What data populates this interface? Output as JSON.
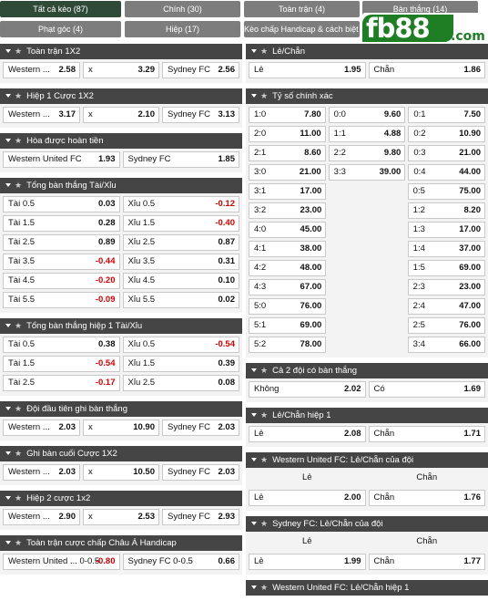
{
  "tabs": [
    {
      "label": "Tất cả kèo (87)",
      "active": true
    },
    {
      "label": "Chính (30)"
    },
    {
      "label": "Toàn trận (4)"
    },
    {
      "label": "Bàn thắng (14)"
    },
    {
      "label": "Phạt góc (4)"
    },
    {
      "label": "Hiệp (17)"
    },
    {
      "label": "Kèo chấp Handicap & cách biệt (3)"
    }
  ],
  "logo": {
    "main": "fb88",
    "suffix": ".com",
    "color": "#1e7e24"
  },
  "left": [
    {
      "title": "Toàn trận 1X2",
      "rows": [
        [
          [
            "Western ...",
            "2.58"
          ],
          [
            "x",
            "3.29"
          ],
          [
            "Sydney FC",
            "2.56"
          ]
        ]
      ]
    },
    {
      "title": "Hiệp 1 Cược 1X2",
      "rows": [
        [
          [
            "Western ...",
            "3.17"
          ],
          [
            "x",
            "2.10"
          ],
          [
            "Sydney FC",
            "3.13"
          ]
        ]
      ]
    },
    {
      "title": "Hòa được hoàn tiền",
      "rows": [
        [
          [
            "Western United FC",
            "1.93"
          ],
          [
            "Sydney FC",
            "1.85"
          ]
        ]
      ]
    },
    {
      "title": "Tổng bàn thắng Tài/Xỉu",
      "rows": [
        [
          [
            "Tài 0.5",
            "0.03"
          ],
          [
            "Xỉu 0.5",
            "-0.12"
          ]
        ],
        [
          [
            "Tài 1.5",
            "0.28"
          ],
          [
            "Xỉu 1.5",
            "-0.40"
          ]
        ],
        [
          [
            "Tài 2.5",
            "0.89"
          ],
          [
            "Xỉu 2.5",
            "0.87"
          ]
        ],
        [
          [
            "Tài 3.5",
            "-0.44"
          ],
          [
            "Xỉu 3.5",
            "0.31"
          ]
        ],
        [
          [
            "Tài 4.5",
            "-0.20"
          ],
          [
            "Xỉu 4.5",
            "0.10"
          ]
        ],
        [
          [
            "Tài 5.5",
            "-0.09"
          ],
          [
            "Xỉu 5.5",
            "0.02"
          ]
        ]
      ]
    },
    {
      "title": "Tổng bàn thắng hiệp 1 Tài/Xỉu",
      "rows": [
        [
          [
            "Tài 0.5",
            "0.38"
          ],
          [
            "Xỉu 0.5",
            "-0.54"
          ]
        ],
        [
          [
            "Tài 1.5",
            "-0.54"
          ],
          [
            "Xỉu 1.5",
            "0.39"
          ]
        ],
        [
          [
            "Tài 2.5",
            "-0.17"
          ],
          [
            "Xỉu 2.5",
            "0.08"
          ]
        ]
      ]
    },
    {
      "title": "Đội đầu tiên ghi bàn thắng",
      "rows": [
        [
          [
            "Western ...",
            "2.03"
          ],
          [
            "x",
            "10.90"
          ],
          [
            "Sydney FC",
            "2.03"
          ]
        ]
      ]
    },
    {
      "title": "Ghi bàn cuối Cược 1X2",
      "rows": [
        [
          [
            "Western ...",
            "2.03"
          ],
          [
            "x",
            "10.50"
          ],
          [
            "Sydney FC",
            "2.03"
          ]
        ]
      ]
    },
    {
      "title": "Hiệp 2 cược 1x2",
      "rows": [
        [
          [
            "Western ...",
            "2.90"
          ],
          [
            "x",
            "2.53"
          ],
          [
            "Sydney FC",
            "2.93"
          ]
        ]
      ]
    },
    {
      "title": "Toàn trận cược chấp Châu Á Handicap",
      "rows": [
        [
          [
            "Western United ... 0-0.5",
            "-0.80"
          ],
          [
            "Sydney FC 0-0.5",
            "0.66"
          ]
        ]
      ]
    }
  ],
  "right_lechan": {
    "title": "Lẻ/Chẵn",
    "rows": [
      [
        [
          "Lẻ",
          "1.95"
        ],
        [
          "Chẵn",
          "1.86"
        ]
      ]
    ]
  },
  "score": {
    "title": "Tỷ số chính xác",
    "rows": [
      [
        [
          "1:0",
          "7.80"
        ],
        [
          "0:0",
          "9.60"
        ],
        [
          "0:1",
          "7.50"
        ]
      ],
      [
        [
          "2:0",
          "11.00"
        ],
        [
          "1:1",
          "4.88"
        ],
        [
          "0:2",
          "10.90"
        ]
      ],
      [
        [
          "2:1",
          "8.60"
        ],
        [
          "2:2",
          "9.80"
        ],
        [
          "0:3",
          "21.00"
        ]
      ],
      [
        [
          "3:0",
          "21.00"
        ],
        [
          "3:3",
          "39.00"
        ],
        [
          "0:4",
          "44.00"
        ]
      ],
      [
        [
          "3:1",
          "17.00"
        ],
        null,
        [
          "0:5",
          "75.00"
        ]
      ],
      [
        [
          "3:2",
          "23.00"
        ],
        null,
        [
          "1:2",
          "8.20"
        ]
      ],
      [
        [
          "4:0",
          "45.00"
        ],
        null,
        [
          "1:3",
          "17.00"
        ]
      ],
      [
        [
          "4:1",
          "38.00"
        ],
        null,
        [
          "1:4",
          "37.00"
        ]
      ],
      [
        [
          "4:2",
          "48.00"
        ],
        null,
        [
          "1:5",
          "69.00"
        ]
      ],
      [
        [
          "4:3",
          "67.00"
        ],
        null,
        [
          "2:3",
          "23.00"
        ]
      ],
      [
        [
          "5:0",
          "76.00"
        ],
        null,
        [
          "2:4",
          "47.00"
        ]
      ],
      [
        [
          "5:1",
          "69.00"
        ],
        null,
        [
          "2:5",
          "76.00"
        ]
      ],
      [
        [
          "5:2",
          "78.00"
        ],
        null,
        [
          "3:4",
          "66.00"
        ]
      ]
    ]
  },
  "right_more": [
    {
      "title": "Cả 2 đội có bàn thắng",
      "rows": [
        [
          [
            "Không",
            "2.02"
          ],
          [
            "Có",
            "1.69"
          ]
        ]
      ]
    },
    {
      "title": "Lẻ/Chẵn hiệp 1",
      "rows": [
        [
          [
            "Lẻ",
            "2.08"
          ],
          [
            "Chẵn",
            "1.71"
          ]
        ]
      ]
    },
    {
      "title": "Western United FC: Lẻ/Chẵn của đội",
      "sub": [
        "Lẻ",
        "Chẵn"
      ],
      "rows": [
        [
          [
            "Lẻ",
            "2.00"
          ],
          [
            "Chẵn",
            "1.76"
          ]
        ]
      ]
    },
    {
      "title": "Sydney FC: Lẻ/Chẵn của đội",
      "sub": [
        "Lẻ",
        "Chẵn"
      ],
      "rows": [
        [
          [
            "Lẻ",
            "1.99"
          ],
          [
            "Chẵn",
            "1.77"
          ]
        ]
      ]
    },
    {
      "title": "Western United FC: Lẻ/Chẵn hiệp 1",
      "rows": []
    }
  ]
}
